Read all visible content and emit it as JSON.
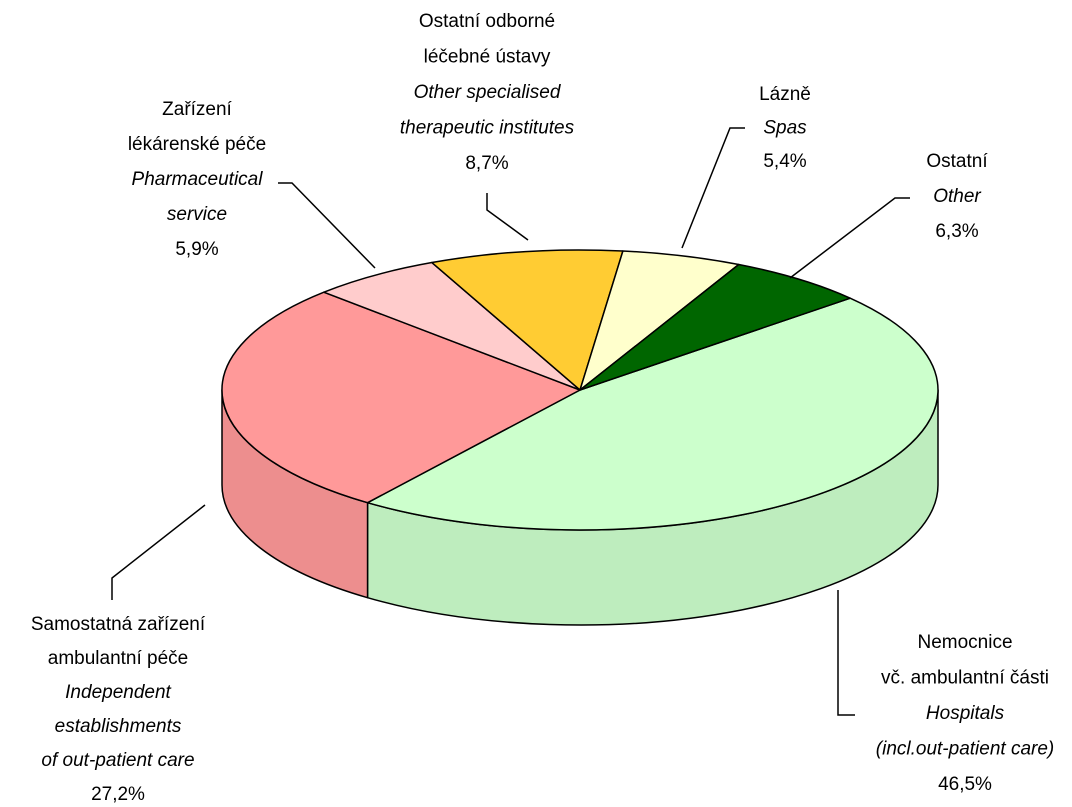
{
  "chart_data": {
    "type": "pie",
    "labels": [
      {
        "cs": [
          "Nemocnice",
          "vč. ambulantní části"
        ],
        "en": [
          "Hospitals",
          "(incl.out-patient care)"
        ]
      },
      {
        "cs": [
          "Samostatná zařízení",
          "ambulantní péče"
        ],
        "en": [
          "Independent",
          "establishments",
          "of out-patient care"
        ]
      },
      {
        "cs": [
          "Zařízení",
          "lékárenské péče"
        ],
        "en": [
          "Pharmaceutical",
          "service"
        ]
      },
      {
        "cs": [
          "Ostatní odborné",
          "léčebné ústavy"
        ],
        "en": [
          "Other specialised",
          "therapeutic institutes"
        ]
      },
      {
        "cs": [
          "Lázně"
        ],
        "en": [
          "Spas"
        ]
      },
      {
        "cs": [
          "Ostatní"
        ],
        "en": [
          "Other"
        ]
      }
    ],
    "values": [
      46.5,
      27.2,
      5.9,
      8.7,
      5.4,
      6.3
    ],
    "value_labels": [
      "46,5%",
      "27,2%",
      "5,9%",
      "8,7%",
      "5,4%",
      "6,3%"
    ],
    "colors": [
      "#ccffcc",
      "#ff9999",
      "#ffcccc",
      "#ffcc33",
      "#ffffcc",
      "#006600"
    ]
  }
}
